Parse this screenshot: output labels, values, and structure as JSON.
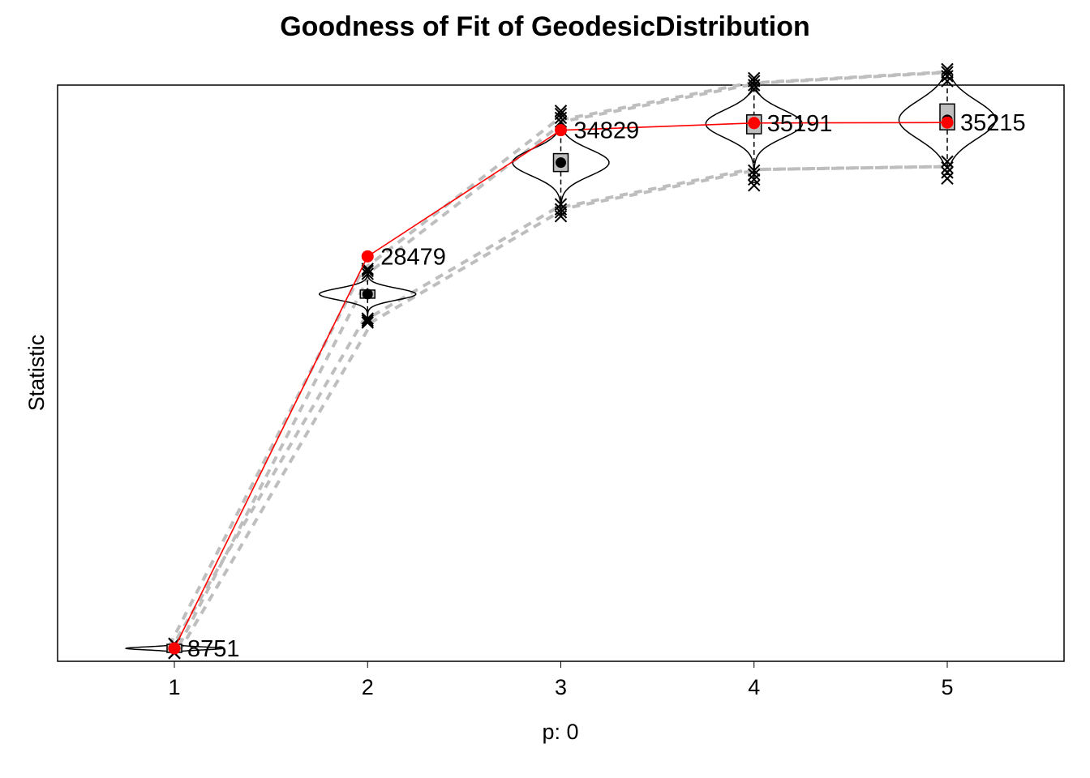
{
  "chart_data": {
    "type": "line",
    "title": "Goodness of Fit of GeodesicDistribution",
    "xlabel": "p: 0",
    "ylabel": "Statistic",
    "categories": [
      "1",
      "2",
      "3",
      "4",
      "5"
    ],
    "ylim": [
      8100,
      37100
    ],
    "grid": false,
    "colors": {
      "observed": "#ff0000",
      "bounds": "#bebebe",
      "box_fill": "#bebebe",
      "outline": "#000000"
    },
    "observed": {
      "values": [
        8751,
        28479,
        34829,
        35191,
        35215
      ],
      "labels": [
        "8751",
        "28479",
        "34829",
        "35191",
        "35215"
      ]
    },
    "simulated": [
      {
        "x": "1",
        "median": 8751,
        "q1": 8700,
        "q3": 8800,
        "low": 8580,
        "high": 8920,
        "min": 8540,
        "max": 8960,
        "outliers_low": [
          8510,
          8530
        ],
        "outliers_high": [
          8970,
          8990
        ],
        "violin_halfwidth": 0.25
      },
      {
        "x": "2",
        "median": 26580,
        "q1": 26380,
        "q3": 26780,
        "low": 25450,
        "high": 27550,
        "min": 25300,
        "max": 27700,
        "outliers_low": [
          25150,
          25250,
          25350
        ],
        "outliers_high": [
          27600,
          27750,
          27850
        ],
        "violin_halfwidth": 0.25
      },
      {
        "x": "3",
        "median": 33200,
        "q1": 32750,
        "q3": 33650,
        "low": 30950,
        "high": 35300,
        "min": 30600,
        "max": 35650,
        "outliers_low": [
          30500,
          30700,
          30850,
          31100
        ],
        "outliers_high": [
          35250,
          35450,
          35650,
          35800
        ],
        "violin_halfwidth": 0.25
      },
      {
        "x": "4",
        "median": 35150,
        "q1": 34650,
        "q3": 35600,
        "low": 32700,
        "high": 37050,
        "min": 32200,
        "max": 37400,
        "outliers_low": [
          32050,
          32350,
          32600,
          32800
        ],
        "outliers_high": [
          36900,
          37100,
          37300,
          37450
        ],
        "violin_halfwidth": 0.25
      },
      {
        "x": "5",
        "median": 35350,
        "q1": 34850,
        "q3": 36150,
        "low": 33050,
        "high": 37450,
        "min": 32600,
        "max": 37750,
        "outliers_low": [
          32400,
          32700,
          32950,
          33250
        ],
        "outliers_high": [
          37300,
          37550,
          37750,
          37900
        ],
        "violin_halfwidth": 0.25
      }
    ],
    "bounds_upper": [
      8900,
      27800,
      35300,
      37200,
      37750
    ],
    "bounds_lower": [
      8600,
      25200,
      30900,
      32850,
      33000
    ],
    "bounds_style": "dashed"
  }
}
